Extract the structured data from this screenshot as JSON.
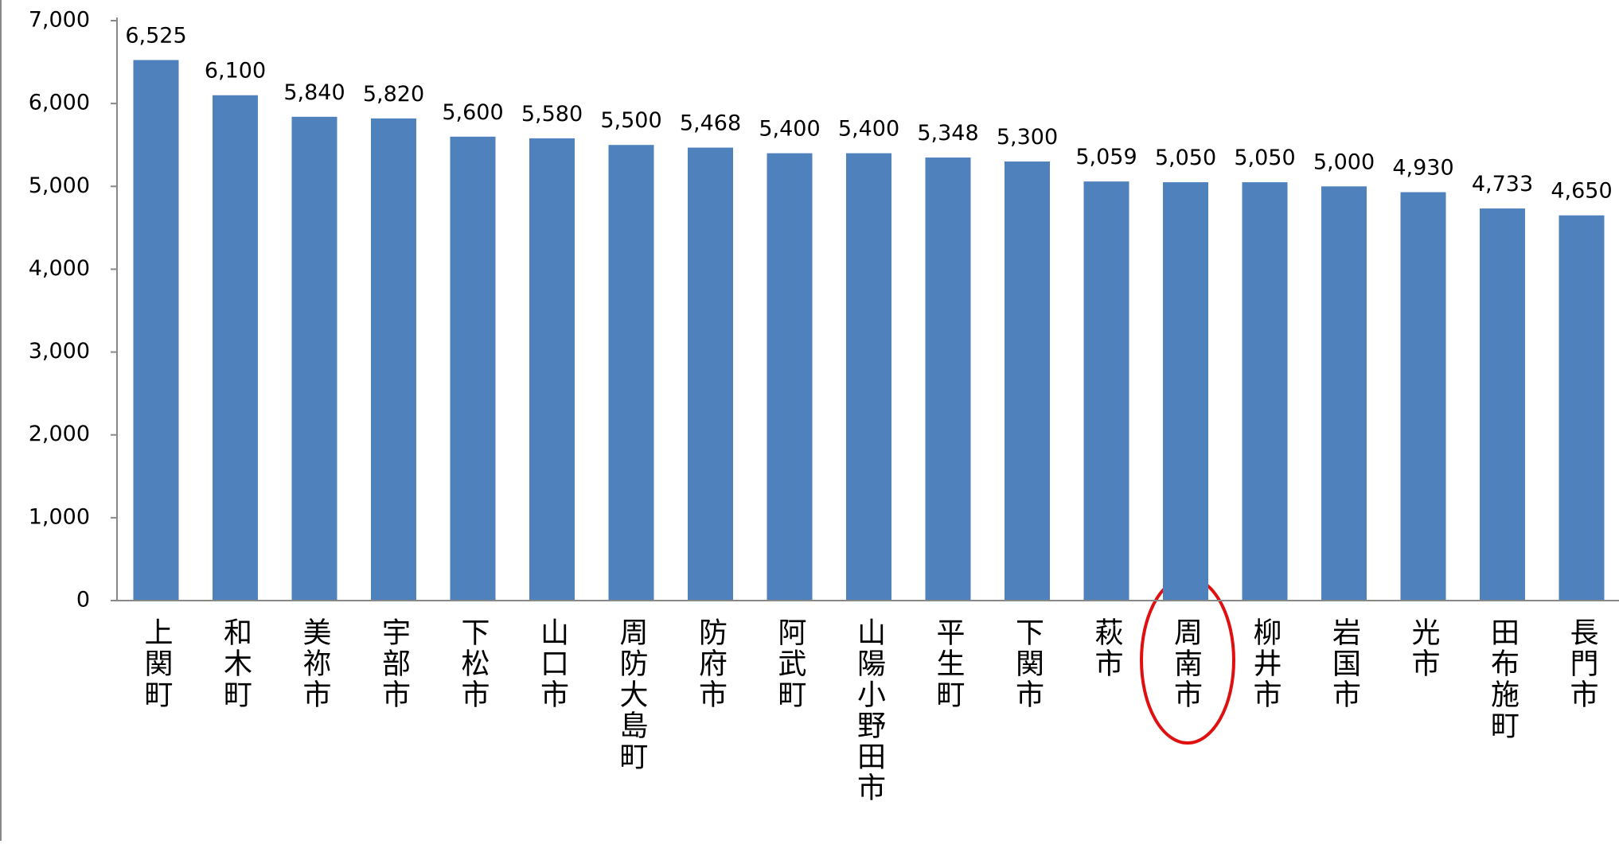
{
  "chart_data": {
    "type": "bar",
    "categories": [
      "上関町",
      "和木町",
      "美祢市",
      "宇部市",
      "下松市",
      "山口市",
      "周防大島町",
      "防府市",
      "阿武町",
      "山陽小野田市",
      "平生町",
      "下関市",
      "萩市",
      "周南市",
      "柳井市",
      "岩国市",
      "光市",
      "田布施町",
      "長門市"
    ],
    "values": [
      6525,
      6100,
      5840,
      5820,
      5600,
      5580,
      5500,
      5468,
      5400,
      5400,
      5348,
      5300,
      5059,
      5050,
      5050,
      5000,
      4930,
      4733,
      4650
    ],
    "value_labels": [
      "6,525",
      "6,100",
      "5,840",
      "5,820",
      "5,600",
      "5,580",
      "5,500",
      "5,468",
      "5,400",
      "5,400",
      "5,348",
      "5,300",
      "5,059",
      "5,050",
      "5,050",
      "5,000",
      "4,930",
      "4,733",
      "4,650"
    ],
    "color": "#4f81bd",
    "ylim": [
      0,
      7000
    ],
    "yticks": [
      0,
      {
        "value": 1000,
        "label": "1,000"
      },
      {
        "value": 2000,
        "label": "2,000"
      },
      {
        "value": 3000,
        "label": "3,000"
      },
      {
        "value": 4000,
        "label": "4,000"
      },
      {
        "value": 5000,
        "label": "5,000"
      },
      {
        "value": 6000,
        "label": "6,000"
      },
      {
        "value": 7000,
        "label": "7,000"
      }
    ],
    "grid": false
  }
}
